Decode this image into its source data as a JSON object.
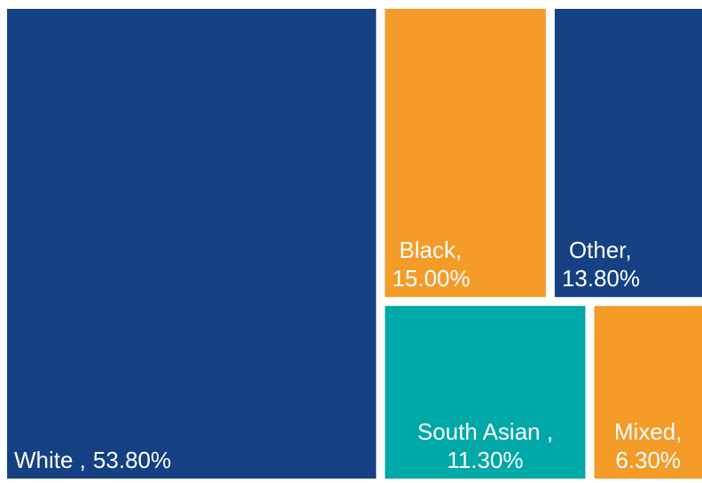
{
  "chart_data": {
    "type": "treemap",
    "categories": [
      "White ,",
      "Black,",
      "Other,",
      "South Asian ,",
      "Mixed,"
    ],
    "values": [
      53.8,
      15.0,
      13.8,
      11.3,
      6.3
    ],
    "value_labels": [
      "53.80%",
      "15.00%",
      "13.80%",
      "11.30%",
      "6.30%"
    ],
    "colors": [
      "#154083",
      "#f49b28",
      "#154083",
      "#00a8a8",
      "#f49b28"
    ]
  }
}
